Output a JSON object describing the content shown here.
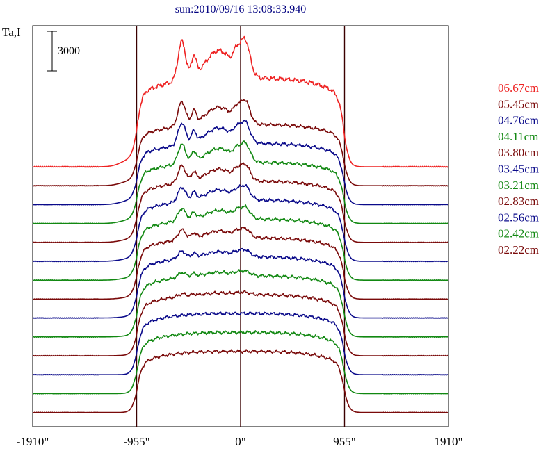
{
  "chart_data": {
    "type": "line",
    "title": "sun:2010/09/16 13:08:33.940",
    "ylabel": "Ta,I",
    "scale_bar_label": "3000",
    "x_ticks": [
      {
        "value": -1910,
        "label": "-1910\""
      },
      {
        "value": -955,
        "label": "-955\""
      },
      {
        "value": 0,
        "label": "0\""
      },
      {
        "value": 955,
        "label": "955\""
      },
      {
        "value": 1910,
        "label": "1910\""
      }
    ],
    "xlim": [
      -1910,
      1910
    ],
    "vertical_lines_at": [
      -955,
      0,
      955
    ],
    "grid": false,
    "legend_placement": "right",
    "series": [
      {
        "name": "06.67cm",
        "color": "#ee2222"
      },
      {
        "name": "05.45cm",
        "color": "#7a0a0a"
      },
      {
        "name": "04.76cm",
        "color": "#0a0a8a"
      },
      {
        "name": "04.11cm",
        "color": "#118811"
      },
      {
        "name": "03.80cm",
        "color": "#7a0a0a"
      },
      {
        "name": "03.45cm",
        "color": "#0a0a8a"
      },
      {
        "name": "03.21cm",
        "color": "#118811"
      },
      {
        "name": "02.83cm",
        "color": "#7a0a0a"
      },
      {
        "name": "02.56cm",
        "color": "#0a0a8a"
      },
      {
        "name": "02.42cm",
        "color": "#118811"
      },
      {
        "name": "02.22cm",
        "color": "#7a0a0a"
      },
      {
        "color": "#0a0a8a"
      },
      {
        "color": "#118811"
      },
      {
        "color": "#7a0a0a"
      }
    ]
  }
}
